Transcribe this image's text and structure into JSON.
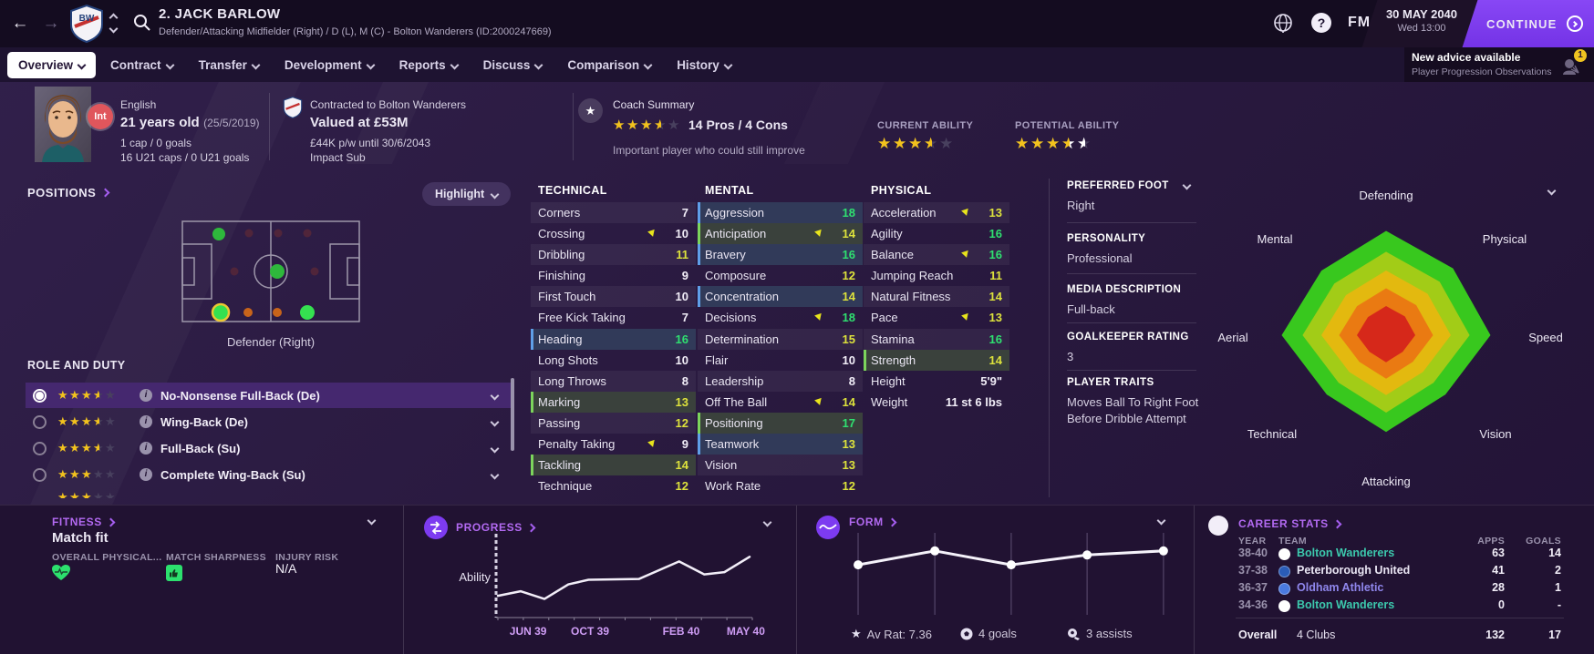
{
  "header": {
    "player_name": "2. JACK BARLOW",
    "subtitle": "Defender/Attacking Midfielder (Right) / D (L), M (C) - Bolton Wanderers (ID:2000247669)",
    "fm_logo": "FM",
    "date_line1": "30 MAY 2040",
    "date_line2": "Wed 13:00",
    "continue_label": "CONTINUE"
  },
  "tabs": [
    {
      "label": "Overview"
    },
    {
      "label": "Contract"
    },
    {
      "label": "Transfer"
    },
    {
      "label": "Development"
    },
    {
      "label": "Reports"
    },
    {
      "label": "Discuss"
    },
    {
      "label": "Comparison"
    },
    {
      "label": "History"
    }
  ],
  "advice": {
    "title": "New advice available",
    "subtitle": "Player Progression Observations",
    "badge": "1"
  },
  "summary": {
    "int_badge": "Int",
    "nationality": "English",
    "age_bold": "21 years old",
    "age_date": "(25/5/2019)",
    "caps": "1 cap / 0 goals",
    "u21_caps": "16 U21 caps / 0 U21 goals",
    "contracted": "Contracted to Bolton Wanderers",
    "value": "Valued at £53M",
    "wage": "£44K p/w until 30/6/2043",
    "squad_status": "Impact Sub",
    "coach_title": "Coach Summary",
    "coach_stars": 3.5,
    "pros_cons": "14 Pros / 4 Cons",
    "coach_note": "Important player who could still improve",
    "ca_label": "CURRENT ABILITY",
    "ca_stars": 3.5,
    "pa_label": "POTENTIAL ABILITY",
    "pa_stars": {
      "gold": 3.5,
      "white_to": 4.5
    }
  },
  "positions": {
    "title": "POSITIONS",
    "highlight_label": "Highlight",
    "caption": "Defender (Right)"
  },
  "roles": {
    "title": "ROLE AND DUTY",
    "items": [
      {
        "stars": 3.5,
        "label": "No-Nonsense Full-Back (De)"
      },
      {
        "stars": 3.5,
        "label": "Wing-Back (De)"
      },
      {
        "stars": 3.5,
        "label": "Full-Back (Su)"
      },
      {
        "stars": 3,
        "label": "Complete Wing-Back (Su)"
      }
    ]
  },
  "attributes": {
    "technical": {
      "title": "TECHNICAL",
      "rows": [
        {
          "label": "Corners",
          "value": "7",
          "tone": "lo"
        },
        {
          "label": "Crossing",
          "value": "10",
          "tone": "lo",
          "arrow": true
        },
        {
          "label": "Dribbling",
          "value": "11",
          "tone": "mid"
        },
        {
          "label": "Finishing",
          "value": "9",
          "tone": "lo"
        },
        {
          "label": "First Touch",
          "value": "10",
          "tone": "lo"
        },
        {
          "label": "Free Kick Taking",
          "value": "7",
          "tone": "lo"
        },
        {
          "label": "Heading",
          "value": "16",
          "tone": "hi",
          "hl": "blue"
        },
        {
          "label": "Long Shots",
          "value": "10",
          "tone": "lo"
        },
        {
          "label": "Long Throws",
          "value": "8",
          "tone": "lo"
        },
        {
          "label": "Marking",
          "value": "13",
          "tone": "mid",
          "hl": "green"
        },
        {
          "label": "Passing",
          "value": "12",
          "tone": "mid"
        },
        {
          "label": "Penalty Taking",
          "value": "9",
          "tone": "lo",
          "arrow": true
        },
        {
          "label": "Tackling",
          "value": "14",
          "tone": "mid",
          "hl": "green"
        },
        {
          "label": "Technique",
          "value": "12",
          "tone": "mid"
        }
      ]
    },
    "mental": {
      "title": "MENTAL",
      "rows": [
        {
          "label": "Aggression",
          "value": "18",
          "tone": "hi",
          "hl": "blue"
        },
        {
          "label": "Anticipation",
          "value": "14",
          "tone": "mid",
          "arrow": true,
          "hl": "green"
        },
        {
          "label": "Bravery",
          "value": "16",
          "tone": "hi",
          "hl": "blue"
        },
        {
          "label": "Composure",
          "value": "12",
          "tone": "mid"
        },
        {
          "label": "Concentration",
          "value": "14",
          "tone": "mid",
          "hl": "blue"
        },
        {
          "label": "Decisions",
          "value": "18",
          "tone": "hi",
          "arrow": true
        },
        {
          "label": "Determination",
          "value": "15",
          "tone": "mid"
        },
        {
          "label": "Flair",
          "value": "10",
          "tone": "lo"
        },
        {
          "label": "Leadership",
          "value": "8",
          "tone": "lo"
        },
        {
          "label": "Off The Ball",
          "value": "14",
          "tone": "mid",
          "arrow": true
        },
        {
          "label": "Positioning",
          "value": "17",
          "tone": "hi",
          "hl": "green"
        },
        {
          "label": "Teamwork",
          "value": "13",
          "tone": "mid",
          "hl": "blue"
        },
        {
          "label": "Vision",
          "value": "13",
          "tone": "mid"
        },
        {
          "label": "Work Rate",
          "value": "12",
          "tone": "mid"
        }
      ]
    },
    "physical": {
      "title": "PHYSICAL",
      "rows": [
        {
          "label": "Acceleration",
          "value": "13",
          "tone": "mid",
          "arrow": true
        },
        {
          "label": "Agility",
          "value": "16",
          "tone": "hi"
        },
        {
          "label": "Balance",
          "value": "16",
          "tone": "hi",
          "arrow": true
        },
        {
          "label": "Jumping Reach",
          "value": "11",
          "tone": "mid"
        },
        {
          "label": "Natural Fitness",
          "value": "14",
          "tone": "mid"
        },
        {
          "label": "Pace",
          "value": "13",
          "tone": "mid",
          "arrow": true
        },
        {
          "label": "Stamina",
          "value": "16",
          "tone": "hi"
        },
        {
          "label": "Strength",
          "value": "14",
          "tone": "mid",
          "hl": "green"
        },
        {
          "label": "Height",
          "value": "5'9\"",
          "tone": "plain",
          "plain": true
        },
        {
          "label": "Weight",
          "value": "11 st 6 lbs",
          "tone": "plain",
          "plain": true
        }
      ]
    }
  },
  "info": {
    "preferred_foot_label": "PREFERRED FOOT",
    "preferred_foot": "Right",
    "personality_label": "PERSONALITY",
    "personality": "Professional",
    "media_label": "MEDIA DESCRIPTION",
    "media": "Full-back",
    "gk_label": "GOALKEEPER RATING",
    "gk": "3",
    "traits_label": "PLAYER TRAITS",
    "trait_line1": "Moves Ball To Right Foot",
    "trait_line2": "Before Dribble Attempt"
  },
  "radar": {
    "labels": [
      "Defending",
      "Physical",
      "Speed",
      "Vision",
      "Attacking",
      "Technical",
      "Aerial",
      "Mental"
    ],
    "values": [
      0.97,
      0.88,
      0.97,
      0.78,
      0.9,
      0.78,
      0.97,
      0.85
    ],
    "rings": [
      1,
      0.8,
      0.62,
      0.45,
      0.28
    ],
    "ring_colors": [
      "#38c81e",
      "#a2cc17",
      "#e3b90f",
      "#ea7a12",
      "#d6281a"
    ]
  },
  "panels": {
    "fitness": {
      "title": "FITNESS",
      "status": "Match fit",
      "col1": "OVERALL PHYSICAL...",
      "col2": "MATCH SHARPNESS",
      "col3": "INJURY RISK",
      "injury_value": "N/A",
      "icon_color": "#2ce06e"
    },
    "progress": {
      "title": "PROGRESS",
      "ylabel": "Ability",
      "xticks": [
        "JUN 39",
        "OCT 39",
        "FEB 40",
        "MAY 40"
      ],
      "tick_fx": [
        0.12,
        0.366,
        0.728,
        0.985
      ],
      "points": [
        [
          0,
          0.26
        ],
        [
          0.09,
          0.32
        ],
        [
          0.185,
          0.22
        ],
        [
          0.28,
          0.41
        ],
        [
          0.36,
          0.47
        ],
        [
          0.56,
          0.48
        ],
        [
          0.72,
          0.71
        ],
        [
          0.82,
          0.54
        ],
        [
          0.9,
          0.57
        ],
        [
          1,
          0.77
        ]
      ]
    },
    "form": {
      "title": "FORM",
      "points": [
        [
          0.156,
          0.39
        ],
        [
          0.349,
          0.22
        ],
        [
          0.541,
          0.39
        ],
        [
          0.732,
          0.27
        ],
        [
          0.924,
          0.22
        ]
      ],
      "avg_rating": "Av Rat: 7.36",
      "goals": "4 goals",
      "assists": "3 assists"
    },
    "career": {
      "title": "CAREER STATS",
      "headers": {
        "year": "YEAR",
        "team": "TEAM",
        "apps": "APPS",
        "goals": "GOALS"
      },
      "rows": [
        {
          "years": "38-40",
          "team": "Bolton Wanderers",
          "apps": "63",
          "goals": "14",
          "color": "#3cc9ad",
          "badge": "#ffffff"
        },
        {
          "years": "37-38",
          "team": "Peterborough United",
          "apps": "41",
          "goals": "2",
          "color": "#eae6f4",
          "badge": "#2a5cb8"
        },
        {
          "years": "36-37",
          "team": "Oldham Athletic",
          "apps": "28",
          "goals": "1",
          "color": "#8f86ec",
          "badge": "#4a7ae0"
        },
        {
          "years": "34-36",
          "team": "Bolton Wanderers",
          "apps": "0",
          "goals": "-",
          "color": "#3cc9ad",
          "badge": "#ffffff"
        }
      ],
      "overall_label": "Overall",
      "overall_team": "4 Clubs",
      "overall_apps": "132",
      "overall_goals": "17"
    }
  }
}
